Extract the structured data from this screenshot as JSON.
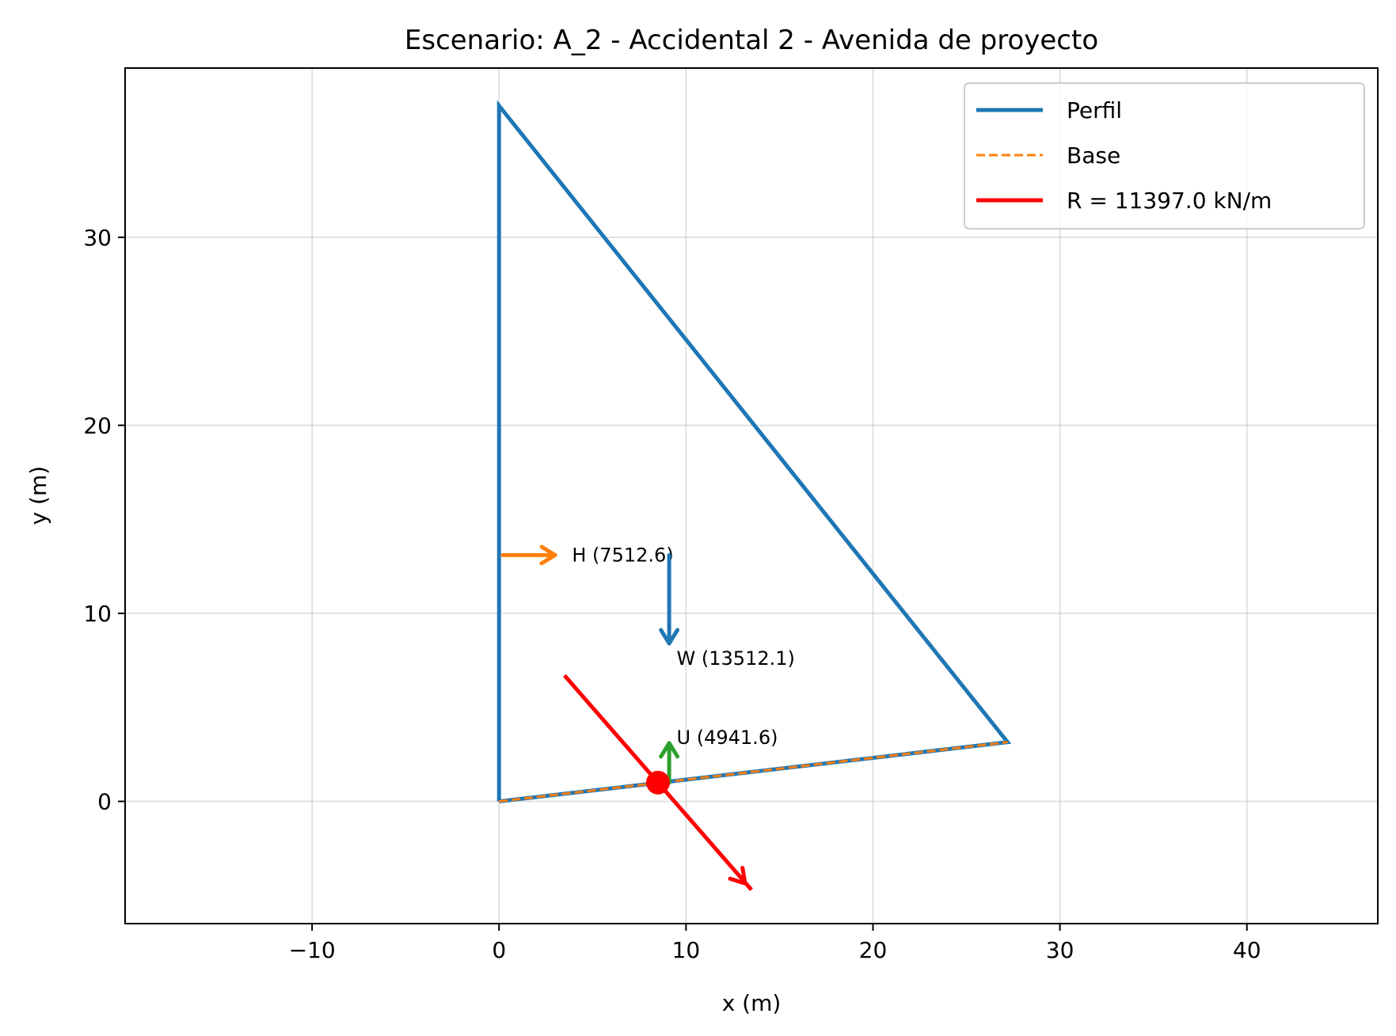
{
  "chart_data": {
    "type": "line",
    "title": "Escenario: A_2 - Accidental 2 - Avenida de proyecto",
    "xlabel": "x (m)",
    "ylabel": "y (m)",
    "xlim": [
      -20,
      47
    ],
    "ylim": [
      -6.5,
      39
    ],
    "grid": true,
    "x_ticks": [
      -10,
      0,
      10,
      20,
      30,
      40
    ],
    "x_tick_labels": [
      "−10",
      "0",
      "10",
      "20",
      "30",
      "40"
    ],
    "y_ticks": [
      0,
      10,
      20,
      30
    ],
    "y_tick_labels": [
      "0",
      "10",
      "20",
      "30"
    ],
    "legend_position": "top-right",
    "series": [
      {
        "name": "Perfil",
        "color": "#1f77b4",
        "style": "solid",
        "points": [
          [
            0,
            0
          ],
          [
            0,
            37
          ],
          [
            27.2,
            3.15
          ],
          [
            0,
            0
          ]
        ]
      },
      {
        "name": "Base",
        "color": "#ff7f0e",
        "style": "dashed",
        "points": [
          [
            0,
            0
          ],
          [
            27.2,
            3.15
          ]
        ]
      },
      {
        "name": "R = 11397.0 kN/m",
        "color": "#ff0000",
        "style": "solid",
        "points": [
          [
            3.5,
            6.7
          ],
          [
            13.5,
            -4.7
          ]
        ]
      }
    ],
    "resultant_point": {
      "x": 8.5,
      "y": 1.0,
      "color": "#ff0000"
    },
    "forces": [
      {
        "label": "H (7512.6)",
        "color": "#ff7f0e",
        "from": [
          0.2,
          13.1
        ],
        "to": [
          3.0,
          13.1
        ],
        "label_at": [
          3.9,
          13.1
        ]
      },
      {
        "label": "W (13512.1)",
        "color": "#1f77b4",
        "from": [
          9.1,
          13.1
        ],
        "to": [
          9.1,
          8.4
        ],
        "label_at": [
          9.5,
          7.6
        ]
      },
      {
        "label": "U (4941.6)",
        "color": "#2ca02c",
        "from": [
          9.1,
          1.0
        ],
        "to": [
          9.1,
          3.1
        ],
        "label_at": [
          9.5,
          3.4
        ]
      }
    ]
  }
}
